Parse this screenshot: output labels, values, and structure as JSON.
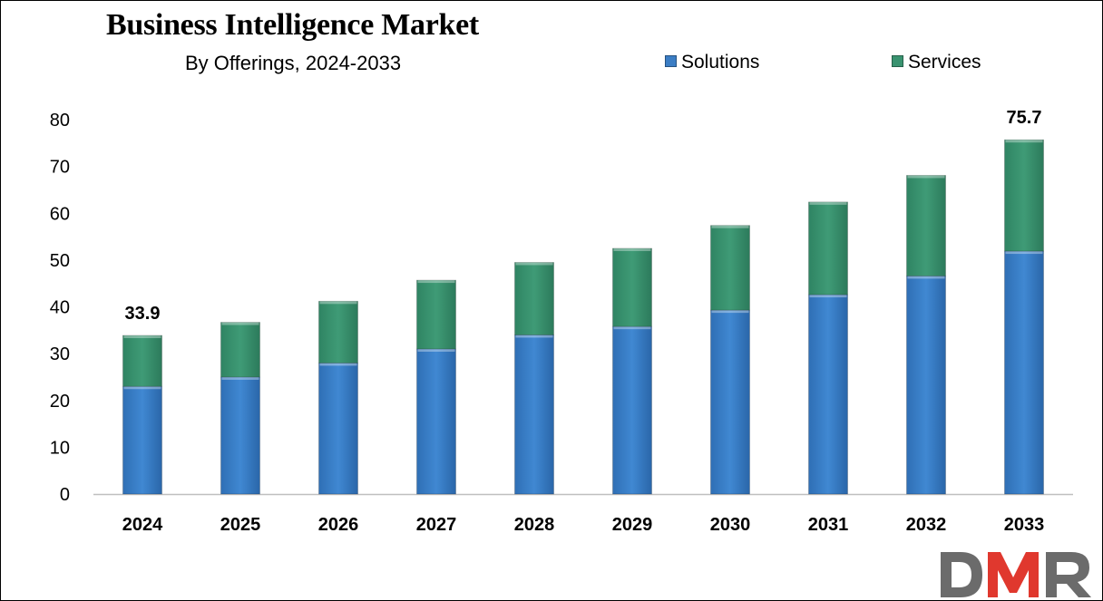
{
  "colors": {
    "solutions": "#3B7DC4",
    "services": "#3A9370",
    "axis": "#bfbfbf",
    "logo_gray": "#6b6b6b",
    "logo_red": "#e0382e"
  },
  "logo": {
    "text": "DMR"
  },
  "chart_data": {
    "type": "bar",
    "stacked": true,
    "title": "Business Intelligence Market",
    "subtitle": "By Offerings, 2024-2033",
    "xlabel": "",
    "ylabel": "",
    "categories": [
      "2024",
      "2025",
      "2026",
      "2027",
      "2028",
      "2029",
      "2030",
      "2031",
      "2032",
      "2033"
    ],
    "series": [
      {
        "name": "Solutions",
        "values": [
          23.0,
          25.0,
          28.0,
          31.0,
          34.0,
          35.8,
          39.3,
          42.6,
          46.6,
          51.9
        ]
      },
      {
        "name": "Services",
        "values": [
          10.9,
          11.7,
          13.2,
          14.7,
          15.5,
          16.7,
          18.1,
          19.8,
          21.5,
          23.8
        ]
      }
    ],
    "totals_labels": [
      {
        "category": "2024",
        "text": "33.9"
      },
      {
        "category": "2033",
        "text": "75.7"
      }
    ],
    "ylim": [
      0,
      80
    ],
    "yticks": [
      0,
      10,
      20,
      30,
      40,
      50,
      60,
      70,
      80
    ],
    "grid": false,
    "legend_position": "top-right"
  }
}
